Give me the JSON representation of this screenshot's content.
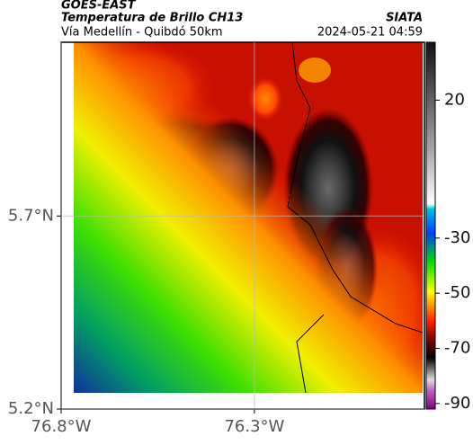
{
  "header": {
    "title": "GOES-EAST",
    "subtitle": "Temperatura de Brillo CH13",
    "source": "SIATA",
    "route": "Vía Medellín - Quibdó 50km",
    "datetime": "2024-05-21 04:59"
  },
  "map": {
    "xlim": [
      -76.8,
      -75.86
    ],
    "ylim": [
      5.2,
      6.15
    ],
    "xticks": [
      {
        "value": -76.8,
        "label": "76.8°W"
      },
      {
        "value": -76.3,
        "label": "76.3°W"
      }
    ],
    "yticks": [
      {
        "value": 5.2,
        "label": "5.2°N"
      },
      {
        "value": 5.7,
        "label": "5.7°N"
      }
    ],
    "grid": true
  },
  "colorbar": {
    "lim": [
      -92,
      41
    ],
    "ticks": [
      20,
      -30,
      -50,
      -70,
      -90
    ]
  }
}
